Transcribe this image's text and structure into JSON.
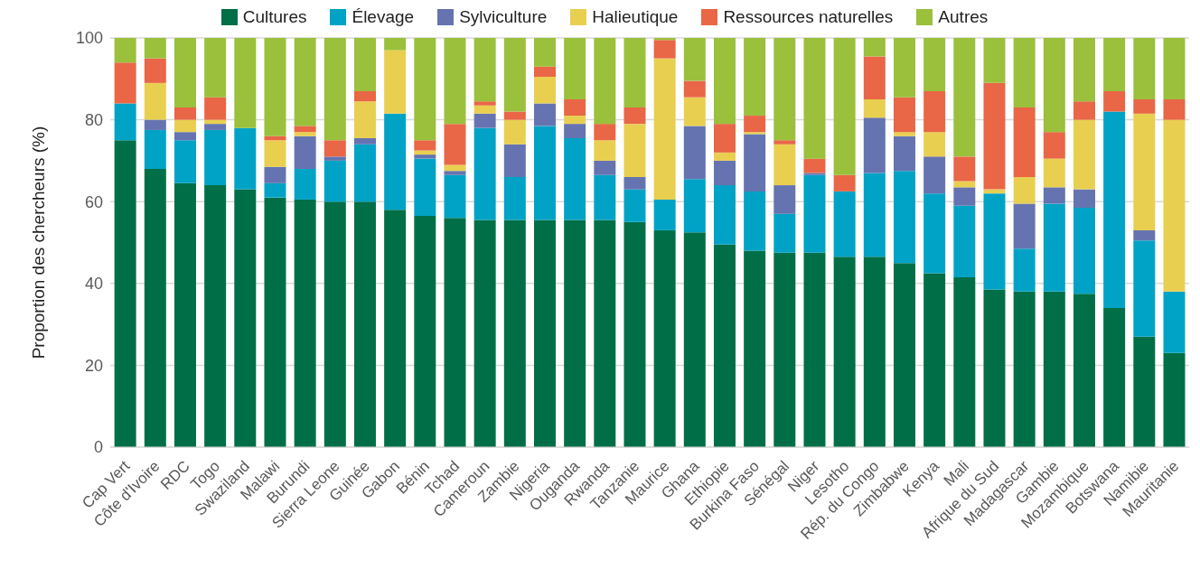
{
  "chart_data": {
    "type": "bar",
    "stacked": true,
    "ylabel": "Proportion des chercheurs (%)",
    "categories": [
      "Cap Vert",
      "Côte d'Ivoire",
      "RDC",
      "Togo",
      "Swaziland",
      "Malawi",
      "Burundi",
      "Sierra Leone",
      "Guinée",
      "Gabon",
      "Bénin",
      "Tchad",
      "Cameroun",
      "Zambie",
      "Nigeria",
      "Ouganda",
      "Rwanda",
      "Tanzanie",
      "Maurice",
      "Ghana",
      "Ethiopie",
      "Burkina Faso",
      "Sénégal",
      "Niger",
      "Lesotho",
      "Rép. du Congo",
      "Zimbabwe",
      "Kenya",
      "Mali",
      "Afrique du Sud",
      "Madagascar",
      "Gambie",
      "Mozambique",
      "Botswana",
      "Namibie",
      "Mauritanie"
    ],
    "series": [
      {
        "name": "Cultures",
        "color": "#006f47",
        "values": [
          75,
          68,
          64.5,
          64,
          63,
          61,
          60.5,
          60,
          60,
          58,
          56.5,
          56,
          55.5,
          55.5,
          55.5,
          55.5,
          55.5,
          55,
          53,
          52.5,
          49.5,
          48,
          47.5,
          47.5,
          46.5,
          46.5,
          45,
          42.5,
          41.5,
          38.5,
          38,
          38,
          37.5,
          34,
          27,
          23
        ]
      },
      {
        "name": "Élevage",
        "color": "#00a3c6",
        "values": [
          9,
          9.5,
          10.5,
          13.5,
          15,
          3.5,
          7.5,
          10,
          14,
          23.5,
          14,
          10.5,
          22.5,
          10.5,
          23,
          20,
          11,
          8,
          7.5,
          13,
          14.5,
          14.5,
          9.5,
          19,
          16,
          20.5,
          22.5,
          19.5,
          17.5,
          23.5,
          10.5,
          21.5,
          21,
          48,
          23.5,
          15
        ]
      },
      {
        "name": "Sylviculture",
        "color": "#6574b0",
        "values": [
          0,
          2.5,
          2,
          1.5,
          0,
          4,
          8,
          1,
          1.5,
          0,
          1,
          1,
          3.5,
          8,
          5.5,
          3.5,
          3.5,
          3,
          0,
          13,
          6,
          14,
          7,
          0.5,
          0,
          13.5,
          8.5,
          9,
          4.5,
          0,
          11,
          4,
          4.5,
          0,
          2.5,
          0
        ]
      },
      {
        "name": "Halieutique",
        "color": "#e9cf50",
        "values": [
          0,
          9,
          3,
          1,
          0,
          6.5,
          1,
          0,
          9,
          15.5,
          1,
          1.5,
          2,
          6,
          6.5,
          2,
          5,
          13,
          34.5,
          7,
          2,
          0.5,
          10,
          0,
          0,
          4.5,
          1,
          6,
          1.5,
          1,
          6.5,
          7,
          17,
          0,
          28.5,
          42
        ]
      },
      {
        "name": "Ressources naturelles",
        "color": "#e96646",
        "values": [
          10,
          6,
          3,
          5.5,
          0,
          1,
          1.5,
          4,
          2.5,
          0,
          2.5,
          10,
          1,
          2,
          2.5,
          4,
          4,
          4,
          4.5,
          4,
          7,
          4,
          1,
          3.5,
          4,
          10.5,
          8.5,
          10,
          6,
          26,
          17,
          6.5,
          4.5,
          5,
          3.5,
          5
        ]
      },
      {
        "name": "Autres",
        "color": "#9ac03c",
        "values": [
          6,
          5,
          17,
          14.5,
          22,
          24,
          21.5,
          25,
          13,
          3,
          25,
          21,
          15.5,
          18,
          7,
          15,
          21,
          17,
          0.5,
          10.5,
          21,
          19,
          25,
          29.5,
          33.5,
          4.5,
          14.5,
          13,
          29,
          11,
          17,
          23,
          15.5,
          13,
          15,
          15
        ]
      }
    ],
    "ylim": [
      0,
      100
    ],
    "yticks": [
      0,
      20,
      40,
      60,
      80,
      100
    ],
    "grid": "y",
    "legend": "top"
  }
}
